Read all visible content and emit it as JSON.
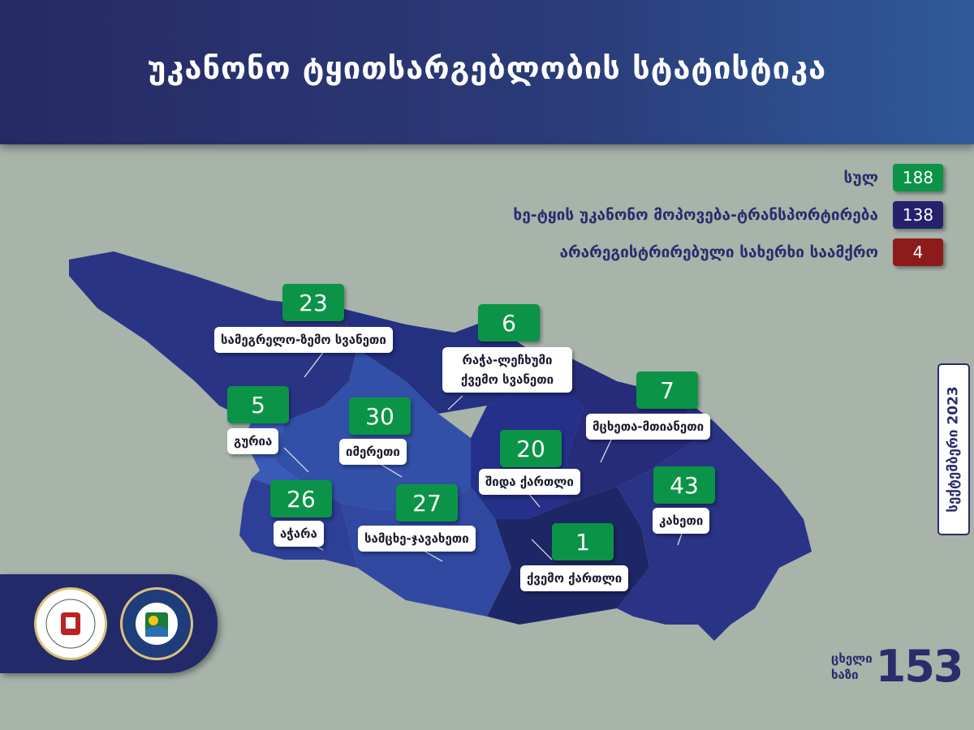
{
  "header": {
    "title": "უკანონო ტყითსარგებლობის სტატისტიკა"
  },
  "legend": [
    {
      "label": "სულ",
      "value": "188",
      "color": "#0b9447"
    },
    {
      "label": "ხე-ტყის უკანონო  მოპოვება-ტრანსპორტირება",
      "value": "138",
      "color": "#23226b"
    },
    {
      "label": "არარეგისტრირებული სახერხი საამქრო",
      "value": "4",
      "color": "#8e1b1b"
    }
  ],
  "regions": [
    {
      "name": "სამეგრელო-ზემო სვანეთი",
      "value": "23"
    },
    {
      "name": "რაჭა-ლეჩხუმი ქვემო სვანეთი",
      "value": "6"
    },
    {
      "name": "მცხეთა-მთიანეთი",
      "value": "7"
    },
    {
      "name": "გურია",
      "value": "5"
    },
    {
      "name": "იმერეთი",
      "value": "30"
    },
    {
      "name": "შიდა ქართლი",
      "value": "20"
    },
    {
      "name": "კახეთი",
      "value": "43"
    },
    {
      "name": "აჭარა",
      "value": "26"
    },
    {
      "name": "სამცხე-ჯავახეთი",
      "value": "27"
    },
    {
      "name": "ქვემო ქართლი",
      "value": "1"
    }
  ],
  "date": "სექტემბერი 2023",
  "hotline": {
    "label_1": "ცხელი",
    "label_2": "ხაზი",
    "number": "153"
  },
  "logos": [
    "ministry-emblem",
    "forestry-agency-emblem"
  ]
}
